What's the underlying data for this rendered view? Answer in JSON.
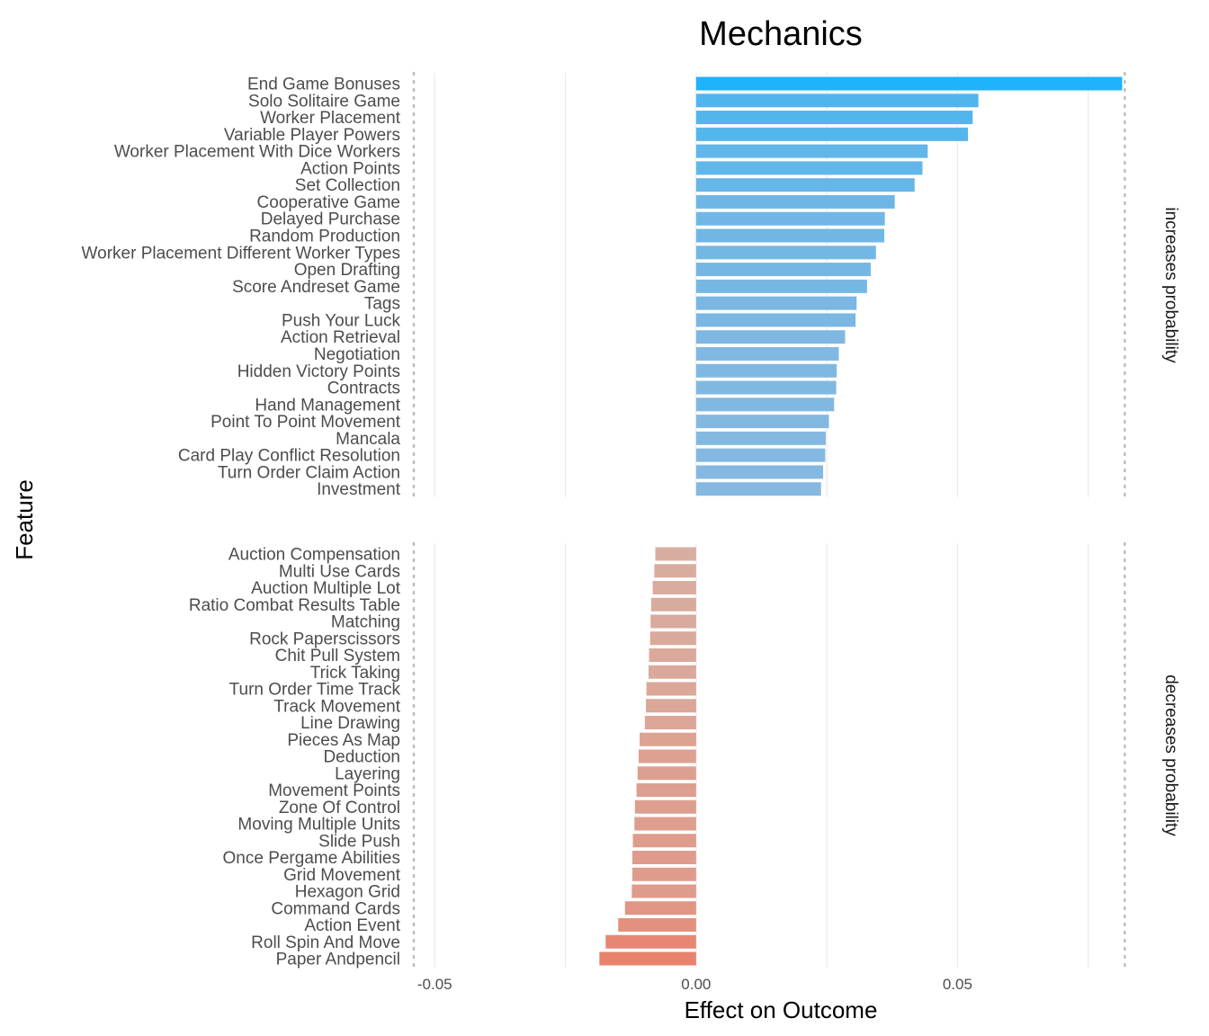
{
  "chart_data": {
    "type": "bar",
    "orientation": "horizontal",
    "title": "Mechanics",
    "xlabel": "Effect on Outcome",
    "ylabel": "Feature",
    "xlim": [
      -0.054,
      0.084
    ],
    "x_ticks": [
      -0.05,
      0.0,
      0.05
    ],
    "x_tick_labels": [
      "-0.05",
      "0.00",
      "0.05"
    ],
    "reference_lines": [
      -0.054,
      0.082
    ],
    "grid": "vertical",
    "colors": {
      "positive_max": "#1eb3fb",
      "positive_min": "#86b8e0",
      "negative_min": "#d8aea1",
      "negative_max": "#e8826d"
    },
    "panels": [
      {
        "name": "increases probability",
        "categories": [
          "End Game Bonuses",
          "Solo Solitaire Game",
          "Worker Placement",
          "Variable Player Powers",
          "Worker Placement With Dice Workers",
          "Action Points",
          "Set Collection",
          "Cooperative Game",
          "Delayed Purchase",
          "Random Production",
          "Worker Placement Different Worker Types",
          "Open Drafting",
          "Score Andreset Game",
          "Tags",
          "Push Your Luck",
          "Action Retrieval",
          "Negotiation",
          "Hidden Victory Points",
          "Contracts",
          "Hand Management",
          "Point To Point Movement",
          "Mancala",
          "Card Play Conflict Resolution",
          "Turn Order Claim Action",
          "Investment"
        ],
        "values": [
          0.0815,
          0.054,
          0.0529,
          0.052,
          0.0443,
          0.0433,
          0.0418,
          0.038,
          0.0361,
          0.036,
          0.0344,
          0.0334,
          0.0327,
          0.0307,
          0.0305,
          0.0285,
          0.0273,
          0.0269,
          0.0268,
          0.0264,
          0.0254,
          0.0248,
          0.0247,
          0.0243,
          0.0239
        ]
      },
      {
        "name": "decreases probability",
        "categories": [
          "Auction Compensation",
          "Multi Use Cards",
          "Auction Multiple Lot",
          "Ratio Combat Results Table",
          "Matching",
          "Rock Paperscissors",
          "Chit Pull System",
          "Trick Taking",
          "Turn Order Time Track",
          "Track Movement",
          "Line Drawing",
          "Pieces As Map",
          "Deduction",
          "Layering",
          "Movement Points",
          "Zone Of Control",
          "Moving Multiple Units",
          "Slide Push",
          "Once Pergame Abilities",
          "Grid Movement",
          "Hexagon Grid",
          "Command Cards",
          "Action Event",
          "Roll Spin And Move",
          "Paper Andpencil"
        ],
        "values": [
          -0.0078,
          -0.008,
          -0.0083,
          -0.0086,
          -0.0087,
          -0.0088,
          -0.009,
          -0.0091,
          -0.0095,
          -0.0096,
          -0.0098,
          -0.0108,
          -0.011,
          -0.0112,
          -0.0114,
          -0.0117,
          -0.0118,
          -0.0121,
          -0.0122,
          -0.0122,
          -0.0123,
          -0.0136,
          -0.0149,
          -0.0173,
          -0.0185
        ]
      }
    ]
  }
}
